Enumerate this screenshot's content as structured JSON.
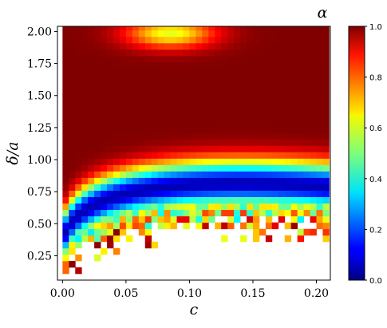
{
  "chart_data": {
    "type": "heatmap",
    "title": "",
    "colorbar_label": "α",
    "xlabel": "c",
    "ylabel": "δ/a",
    "xlim": [
      -0.004,
      0.211
    ],
    "ylim": [
      0.06,
      2.04
    ],
    "x_ticks": [
      0.0,
      0.05,
      0.1,
      0.15,
      0.2
    ],
    "x_tick_labels": [
      "0.00",
      "0.05",
      "0.10",
      "0.15",
      "0.20"
    ],
    "y_ticks": [
      0.25,
      0.5,
      0.75,
      1.0,
      1.25,
      1.5,
      1.75,
      2.0
    ],
    "y_tick_labels": [
      "0.25",
      "0.50",
      "0.75",
      "1.00",
      "1.25",
      "1.50",
      "1.75",
      "2.00"
    ],
    "colorbar_range": [
      0.0,
      1.0
    ],
    "colorbar_ticks": [
      0.0,
      0.2,
      0.4,
      0.6,
      0.8,
      1.0
    ],
    "colorbar_tick_labels": [
      "0.0",
      "0.2",
      "0.4",
      "0.6",
      "0.8",
      "1.0"
    ],
    "colormap": "jet",
    "grid": false,
    "x_range_cells": [
      0.0,
      0.205,
      42
    ],
    "y_range_cells": [
      0.06,
      2.04,
      40
    ],
    "x_grid_step": 0.005,
    "y_grid_step": 0.05,
    "field_description": {
      "boundary": "alpha defined for (c, delta/a) with delta/a above boundary b(c) = 0.06 + 2.7*sqrt(c) - 3.6*c (approx); blank below",
      "valley": "minimum alpha (~0.05) along curve v(c) ≈ b(c) + 0.25",
      "top_band": "alpha dips to ~0.65 near delta/a ≈ 2.0 for c in 0.05–0.12"
    }
  }
}
